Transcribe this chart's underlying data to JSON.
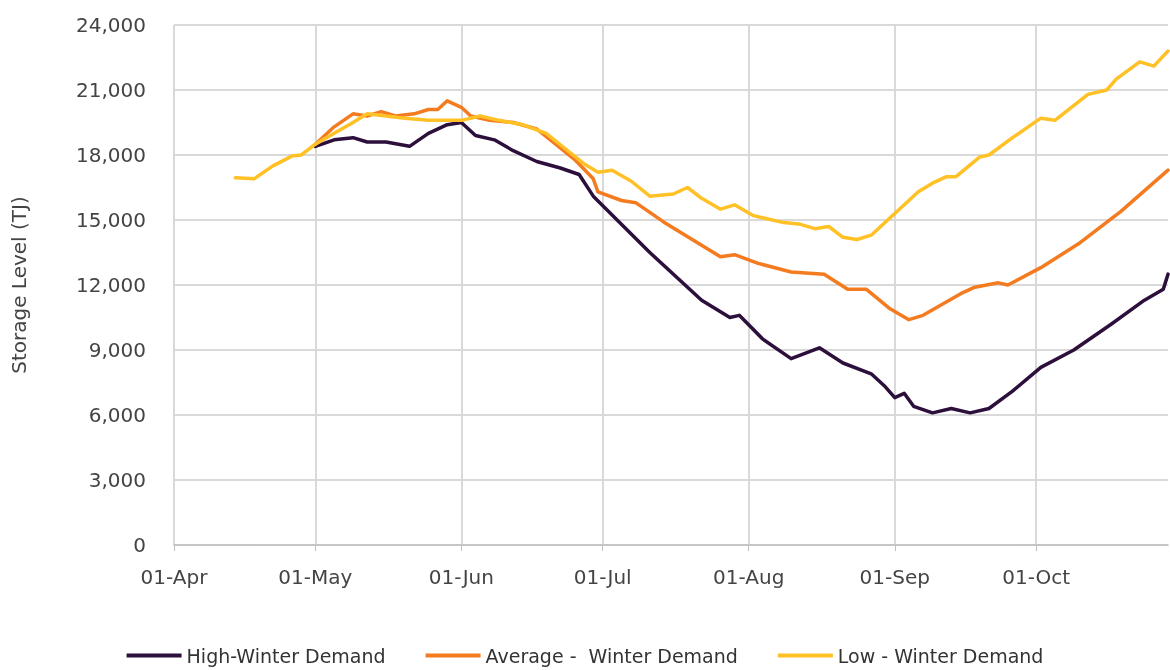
{
  "chart_data": {
    "type": "line",
    "ylabel": "Storage Level (TJ)",
    "xlim": [
      "--04-01",
      "--10-29"
    ],
    "xticks": [
      {
        "value": "--04-01",
        "label": "01-Apr"
      },
      {
        "value": "--05-01",
        "label": "01-May"
      },
      {
        "value": "--06-01",
        "label": "01-Jun"
      },
      {
        "value": "--07-01",
        "label": "01-Jul"
      },
      {
        "value": "--08-01",
        "label": "01-Aug"
      },
      {
        "value": "--09-01",
        "label": "01-Sep"
      },
      {
        "value": "--10-01",
        "label": "01-Oct"
      }
    ],
    "ylim": [
      0,
      24000
    ],
    "yticks": [
      0,
      {
        "value": 3000,
        "label": "3,000"
      },
      {
        "value": 6000,
        "label": "6,000"
      },
      {
        "value": 9000,
        "label": "9,000"
      },
      {
        "value": 12000,
        "label": "12,000"
      },
      {
        "value": 15000,
        "label": "15,000"
      },
      {
        "value": 18000,
        "label": "18,000"
      },
      {
        "value": 21000,
        "label": "21,000"
      },
      {
        "value": 24000,
        "label": "24,000"
      }
    ],
    "grid": true,
    "legend": "bottom",
    "marker": "none",
    "line_style": "solid",
    "series": [
      {
        "name": "High-Winter Demand",
        "color": "#2d0f3c",
        "x": [
          "--05-01",
          "--05-05",
          "--05-09",
          "--05-12",
          "--05-16",
          "--05-21",
          "--05-25",
          "--05-29",
          "--06-01",
          "--06-04",
          "--06-08",
          "--06-12",
          "--06-17",
          "--06-22",
          "--06-26",
          "--06-29",
          "--07-11",
          "--07-22",
          "--07-28",
          "--07-30",
          "--08-04",
          "--08-10",
          "--08-16",
          "--08-21",
          "--08-27",
          "--08-30",
          "--09-01",
          "--09-03",
          "--09-05",
          "--09-09",
          "--09-13",
          "--09-17",
          "--09-21",
          "--09-26",
          "--10-02",
          "--10-09",
          "--10-17",
          "--10-24",
          "--10-28",
          "--10-29"
        ],
        "values": [
          18400,
          18700,
          18800,
          18600,
          18600,
          18400,
          19000,
          19400,
          19500,
          18900,
          18700,
          18200,
          17700,
          17400,
          17100,
          16100,
          13500,
          11300,
          10500,
          10600,
          9500,
          8600,
          9100,
          8400,
          7900,
          7300,
          6800,
          7000,
          6400,
          6100,
          6300,
          6100,
          6300,
          7100,
          8200,
          9000,
          10200,
          11300,
          11800,
          12500
        ]
      },
      {
        "name": "Average -  Winter Demand",
        "color": "#f47b20",
        "x": [
          "--05-01",
          "--05-05",
          "--05-09",
          "--05-12",
          "--05-15",
          "--05-18",
          "--05-22",
          "--05-25",
          "--05-27",
          "--05-29",
          "--06-01",
          "--06-03",
          "--06-07",
          "--06-12",
          "--06-17",
          "--06-21",
          "--06-25",
          "--06-29",
          "--06-30",
          "--07-05",
          "--07-08",
          "--07-14",
          "--07-20",
          "--07-26",
          "--07-29",
          "--08-03",
          "--08-10",
          "--08-17",
          "--08-22",
          "--08-26",
          "--08-31",
          "--09-04",
          "--09-07",
          "--09-15",
          "--09-18",
          "--09-23",
          "--09-25",
          "--10-02",
          "--10-10",
          "--10-19",
          "--10-29"
        ],
        "values": [
          18500,
          19300,
          19900,
          19800,
          20000,
          19800,
          19900,
          20100,
          20100,
          20500,
          20200,
          19800,
          19600,
          19500,
          19200,
          18500,
          17800,
          16900,
          16300,
          15900,
          15800,
          14900,
          14100,
          13300,
          13400,
          13000,
          12600,
          12500,
          11800,
          11800,
          10900,
          10400,
          10600,
          11600,
          11900,
          12100,
          12000,
          12800,
          13900,
          15400,
          17300
        ]
      },
      {
        "name": "Low - Winter Demand",
        "color": "#ffc125",
        "x": [
          "--04-14",
          "--04-18",
          "--04-22",
          "--04-26",
          "--04-28",
          "--05-01",
          "--05-05",
          "--05-09",
          "--05-12",
          "--05-16",
          "--05-20",
          "--05-25",
          "--05-29",
          "--06-01",
          "--06-05",
          "--06-09",
          "--06-14",
          "--06-19",
          "--06-23",
          "--06-27",
          "--06-30",
          "--07-03",
          "--07-07",
          "--07-11",
          "--07-16",
          "--07-19",
          "--07-22",
          "--07-26",
          "--07-29",
          "--08-02",
          "--08-08",
          "--08-12",
          "--08-15",
          "--08-18",
          "--08-21",
          "--08-24",
          "--08-27",
          "--09-01",
          "--09-06",
          "--09-09",
          "--09-12",
          "--09-14",
          "--09-19",
          "--09-21",
          "--09-26",
          "--10-02",
          "--10-05",
          "--10-12",
          "--10-16",
          "--10-18",
          "--10-23",
          "--10-26",
          "--10-29"
        ],
        "values": [
          16950,
          16900,
          17500,
          17950,
          18000,
          18500,
          19000,
          19500,
          19900,
          19800,
          19700,
          19600,
          19600,
          19600,
          19800,
          19600,
          19400,
          19000,
          18300,
          17600,
          17200,
          17300,
          16800,
          16100,
          16200,
          16500,
          16000,
          15500,
          15700,
          15200,
          14900,
          14800,
          14600,
          14700,
          14200,
          14100,
          14300,
          15300,
          16300,
          16700,
          17000,
          17000,
          17900,
          18000,
          18800,
          19700,
          19600,
          20800,
          21000,
          21500,
          22300,
          22100,
          22800
        ]
      }
    ]
  }
}
